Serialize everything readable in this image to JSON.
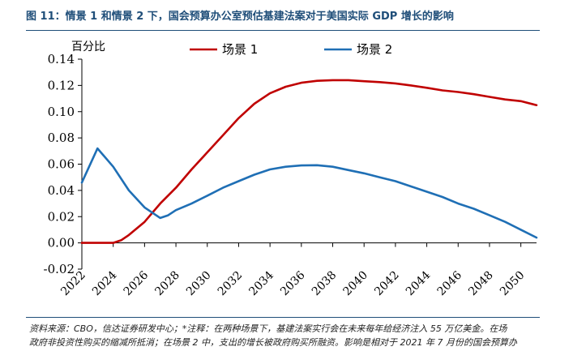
{
  "figure": {
    "title": "图 11：情景 1 和情景 2 下，国会预算办公室预估基建法案对于美国实际 GDP 增长的影响",
    "source_line1": "资料来源：CBO，信达证券研发中心；*注释：在两种场景下，基建法案实行会在未来每年给经济注入 55 万亿美金。在场",
    "source_line2": "政府非投资性购买的缩减所抵消；在场景 2 中，支出的增长被政府购买所融资。影响是相对于 2021 年 7 月份的国会预算办"
  },
  "chart_data": {
    "type": "line",
    "ylabel": "百分比",
    "ylim": [
      -0.02,
      0.14
    ],
    "yticks": [
      -0.02,
      0.0,
      0.02,
      0.04,
      0.06,
      0.08,
      0.1,
      0.12,
      0.14
    ],
    "ytick_labels": [
      "-0.02",
      "0.00",
      "0.02",
      "0.04",
      "0.06",
      "0.08",
      "0.10",
      "0.12",
      "0.14"
    ],
    "xlim": [
      2022,
      2051
    ],
    "xticks": [
      2022,
      2024,
      2026,
      2028,
      2030,
      2032,
      2034,
      2036,
      2038,
      2040,
      2042,
      2044,
      2046,
      2048,
      2050
    ],
    "xtick_labels": [
      "2022",
      "2024",
      "2026",
      "2028",
      "2030",
      "2032",
      "2034",
      "2036",
      "2038",
      "2040",
      "2042",
      "2044",
      "2046",
      "2048",
      "2050"
    ],
    "grid": false,
    "legend_position": "top",
    "series": [
      {
        "name": "场景 1",
        "color": "#c00000",
        "points": [
          [
            2022,
            0.0
          ],
          [
            2023,
            0.0
          ],
          [
            2024,
            0.0
          ],
          [
            2024.5,
            0.002
          ],
          [
            2025,
            0.006
          ],
          [
            2026,
            0.016
          ],
          [
            2027,
            0.03
          ],
          [
            2028,
            0.042
          ],
          [
            2029,
            0.056
          ],
          [
            2030,
            0.069
          ],
          [
            2031,
            0.082
          ],
          [
            2032,
            0.095
          ],
          [
            2033,
            0.106
          ],
          [
            2034,
            0.114
          ],
          [
            2035,
            0.119
          ],
          [
            2036,
            0.122
          ],
          [
            2037,
            0.1235
          ],
          [
            2038,
            0.124
          ],
          [
            2039,
            0.124
          ],
          [
            2040,
            0.1232
          ],
          [
            2041,
            0.1225
          ],
          [
            2042,
            0.1215
          ],
          [
            2043,
            0.12
          ],
          [
            2044,
            0.1182
          ],
          [
            2045,
            0.1162
          ],
          [
            2046,
            0.115
          ],
          [
            2047,
            0.1133
          ],
          [
            2048,
            0.1113
          ],
          [
            2049,
            0.1093
          ],
          [
            2050,
            0.108
          ],
          [
            2051,
            0.105
          ]
        ]
      },
      {
        "name": "场景 2",
        "color": "#1f6fb5",
        "points": [
          [
            2022,
            0.046
          ],
          [
            2023,
            0.072
          ],
          [
            2024,
            0.058
          ],
          [
            2025,
            0.04
          ],
          [
            2026,
            0.027
          ],
          [
            2027,
            0.019
          ],
          [
            2027.5,
            0.021
          ],
          [
            2028,
            0.025
          ],
          [
            2029,
            0.03
          ],
          [
            2030,
            0.036
          ],
          [
            2031,
            0.042
          ],
          [
            2032,
            0.047
          ],
          [
            2033,
            0.052
          ],
          [
            2034,
            0.056
          ],
          [
            2035,
            0.058
          ],
          [
            2036,
            0.059
          ],
          [
            2037,
            0.0592
          ],
          [
            2038,
            0.058
          ],
          [
            2039,
            0.0555
          ],
          [
            2040,
            0.053
          ],
          [
            2041,
            0.05
          ],
          [
            2042,
            0.047
          ],
          [
            2043,
            0.043
          ],
          [
            2044,
            0.039
          ],
          [
            2045,
            0.035
          ],
          [
            2046,
            0.03
          ],
          [
            2047,
            0.026
          ],
          [
            2048,
            0.021
          ],
          [
            2049,
            0.016
          ],
          [
            2050,
            0.01
          ],
          [
            2051,
            0.004
          ]
        ]
      }
    ]
  }
}
